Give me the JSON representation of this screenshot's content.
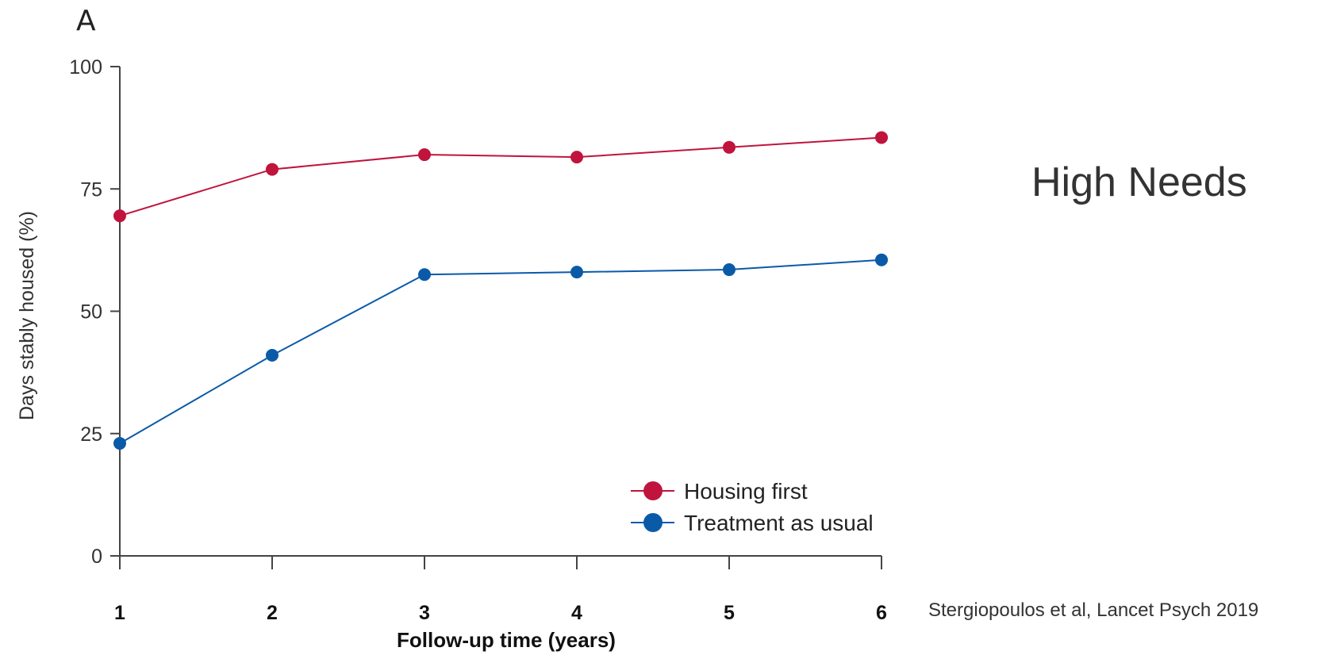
{
  "panel_label": "A",
  "side_title": "High Needs",
  "citation": "Stergiopoulos  et al, Lancet Psych 2019",
  "chart_data": {
    "type": "line",
    "x": [
      1,
      2,
      3,
      4,
      5,
      6
    ],
    "xlabel": "Follow-up time (years)",
    "ylabel": "Days stably housed (%)",
    "ylim": [
      0,
      100
    ],
    "yticks": [
      0,
      25,
      50,
      75,
      100
    ],
    "grid": false,
    "legend_position": "bottom-right",
    "series": [
      {
        "name": "Housing first",
        "color": "#c0143c",
        "values": [
          69.5,
          79,
          82,
          81.5,
          83.5,
          85.5
        ]
      },
      {
        "name": "Treatment as usual",
        "color": "#0b5aa8",
        "values": [
          23,
          41,
          57.5,
          58,
          58.5,
          60.5
        ]
      }
    ]
  }
}
